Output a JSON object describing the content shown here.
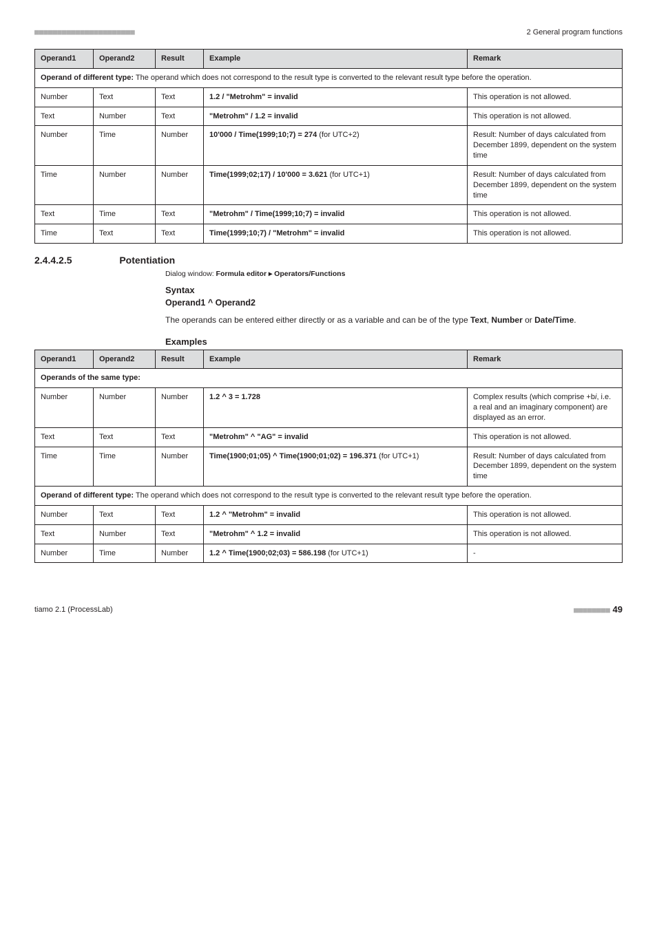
{
  "header": {
    "dashes": "■■■■■■■■■■■■■■■■■■■■■■",
    "right": "2 General program functions"
  },
  "table1": {
    "headers": [
      "Operand1",
      "Operand2",
      "Result",
      "Example",
      "Remark"
    ],
    "span_row_prefix": "Operand of different type:",
    "span_row_rest": " The operand which does not correspond to the result type is converted to the relevant result type before the operation.",
    "rows": [
      {
        "c0": "Number",
        "c1": "Text",
        "c2": "Text",
        "ex_b": "1.2 / \"Metrohm\" = invalid",
        "ex_r": "",
        "rem": "This operation is not allowed."
      },
      {
        "c0": "Text",
        "c1": "Number",
        "c2": "Text",
        "ex_b": "\"Metrohm\" / 1.2 = invalid",
        "ex_r": "",
        "rem": "This operation is not allowed."
      },
      {
        "c0": "Number",
        "c1": "Time",
        "c2": "Number",
        "ex_b": "10'000 / Time(1999;10;7) = 274",
        "ex_r": " (for UTC+2)",
        "rem": "Result: Number of days calculated from December 1899, dependent on the system time"
      },
      {
        "c0": "Time",
        "c1": "Number",
        "c2": "Number",
        "ex_b": "Time(1999;02;17) / 10'000 = 3.621",
        "ex_r": " (for UTC+1)",
        "rem": "Result: Number of days calculated from December 1899, dependent on the system time"
      },
      {
        "c0": "Text",
        "c1": "Time",
        "c2": "Text",
        "ex_b": "\"Metrohm\" / Time(1999;10;7) = invalid",
        "ex_r": "",
        "rem": "This operation is not allowed."
      },
      {
        "c0": "Time",
        "c1": "Text",
        "c2": "Text",
        "ex_b": "Time(1999;10;7) / \"Metrohm\" = invalid",
        "ex_r": "",
        "rem": "This operation is not allowed."
      }
    ]
  },
  "section": {
    "num": "2.4.4.2.5",
    "title": "Potentiation",
    "dialog_prefix": "Dialog window: ",
    "dialog_bold": "Formula editor ▸ Operators/Functions",
    "syntax_label": "Syntax",
    "formula": "Operand1 ^ Operand2",
    "para_before": "The operands can be entered either directly or as a variable and can be of the type ",
    "para_t1": "Text",
    "para_sep1": ", ",
    "para_t2": "Number",
    "para_sep2": " or ",
    "para_t3": "Date/Time",
    "para_after": ".",
    "examples_label": "Examples"
  },
  "table2": {
    "headers": [
      "Operand1",
      "Operand2",
      "Result",
      "Example",
      "Remark"
    ],
    "span_row_same": "Operands of the same type:",
    "rows_same": [
      {
        "c0": "Number",
        "c1": "Number",
        "c2": "Number",
        "ex_b": "1.2 ^ 3 = 1.728",
        "ex_r": "",
        "rem_pre": "Complex results (which comprise +b",
        "rem_i": "i",
        "rem_post": ", i.e. a real and an imaginary component) are displayed as an error."
      },
      {
        "c0": "Text",
        "c1": "Text",
        "c2": "Text",
        "ex_b": "\"Metrohm\" ^ \"AG\" = invalid",
        "ex_r": "",
        "rem_plain": "This operation is not allowed."
      },
      {
        "c0": "Time",
        "c1": "Time",
        "c2": "Number",
        "ex_b": "Time(1900;01;05) ^ Time(1900;01;02) = 196.371",
        "ex_r": " (for UTC+1)",
        "rem_plain": "Result: Number of days calculated from December 1899, dependent on the system time"
      }
    ],
    "span_row_diff_prefix": "Operand of different type:",
    "span_row_diff_rest": " The operand which does not correspond to the result type is converted to the relevant result type before the operation.",
    "rows_diff": [
      {
        "c0": "Number",
        "c1": "Text",
        "c2": "Text",
        "ex_b": "1.2 ^ \"Metrohm\" = invalid",
        "ex_r": "",
        "rem": "This operation is not allowed."
      },
      {
        "c0": "Text",
        "c1": "Number",
        "c2": "Text",
        "ex_b": "\"Metrohm\" ^ 1.2 = invalid",
        "ex_r": "",
        "rem": "This operation is not allowed."
      },
      {
        "c0": "Number",
        "c1": "Time",
        "c2": "Number",
        "ex_b": "1.2 ^ Time(1900;02;03) = 586.198",
        "ex_r": " (for UTC+1)",
        "rem": "-"
      }
    ]
  },
  "footer": {
    "left": "tiamo 2.1 (ProcessLab)",
    "dashes": "■■■■■■■■",
    "page": " 49"
  }
}
